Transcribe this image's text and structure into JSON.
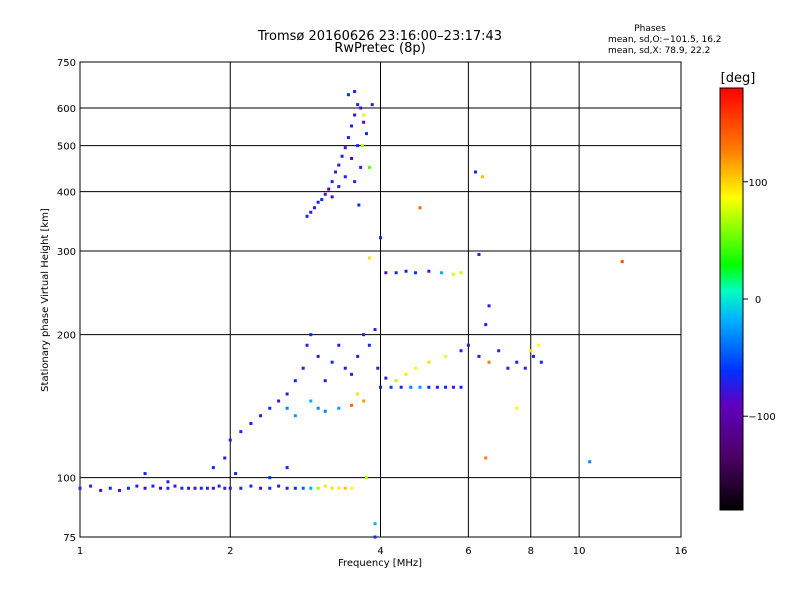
{
  "header": {
    "title": "Tromsø 20160626 23:16:00–23:17:43",
    "subtitle": "RwPretec (8p)",
    "phases_title": "Phases",
    "phases_o": "mean, sd,O:−101.5, 16.2",
    "phases_x": "mean, sd,X:  78.9, 22.2"
  },
  "chart_data": {
    "type": "scatter",
    "xlabel": "Frequency [MHz]",
    "ylabel": "Stationary phase Virtual Height [km]",
    "x_scale": "log",
    "y_scale": "log",
    "xlim": [
      1,
      16
    ],
    "ylim": [
      75,
      750
    ],
    "x_ticks": [
      1,
      2,
      4,
      6,
      8,
      10,
      16
    ],
    "x_tick_labels": [
      "1",
      "2",
      "4",
      "6",
      "8",
      "10",
      "16"
    ],
    "y_ticks": [
      75,
      100,
      200,
      300,
      400,
      500,
      600,
      750
    ],
    "y_tick_labels": [
      "75",
      "100",
      "200",
      "300",
      "400",
      "500",
      "600",
      "750"
    ],
    "grid": true,
    "colorbar": {
      "label": "[deg]",
      "range": [
        -180,
        180
      ],
      "ticks": [
        100,
        0,
        -100
      ],
      "tick_labels": [
        "100",
        "0",
        "−100"
      ]
    },
    "series": [
      {
        "description_key": "F-layer echoes",
        "points": [
          [
            2.85,
            355,
            -100
          ],
          [
            2.9,
            362,
            -110
          ],
          [
            2.95,
            370,
            -105
          ],
          [
            3.0,
            380,
            -100
          ],
          [
            3.05,
            385,
            -95
          ],
          [
            3.1,
            395,
            -110
          ],
          [
            3.15,
            405,
            -120
          ],
          [
            3.2,
            420,
            -100
          ],
          [
            3.25,
            440,
            -105
          ],
          [
            3.3,
            455,
            -110
          ],
          [
            3.35,
            475,
            -100
          ],
          [
            3.4,
            495,
            -115
          ],
          [
            3.45,
            520,
            -100
          ],
          [
            3.5,
            550,
            -105
          ],
          [
            3.55,
            580,
            -110
          ],
          [
            3.6,
            610,
            -100
          ],
          [
            3.45,
            640,
            -95
          ],
          [
            3.55,
            650,
            -105
          ],
          [
            3.65,
            600,
            -115
          ],
          [
            3.7,
            560,
            -120
          ],
          [
            3.4,
            430,
            -100
          ],
          [
            3.5,
            470,
            -130
          ],
          [
            3.6,
            500,
            -105
          ],
          [
            3.3,
            410,
            -100
          ],
          [
            3.2,
            390,
            -125
          ],
          [
            3.65,
            450,
            -100
          ],
          [
            3.55,
            420,
            -105
          ],
          [
            3.85,
            610,
            -110
          ],
          [
            3.75,
            530,
            -100
          ],
          [
            3.62,
            375,
            -100
          ],
          [
            3.68,
            500,
            60
          ],
          [
            3.8,
            450,
            40
          ],
          [
            3.7,
            580,
            80
          ]
        ]
      },
      {
        "description_key": "E and F1-region echoes",
        "points": [
          [
            1.0,
            95,
            -100
          ],
          [
            1.05,
            96,
            -105
          ],
          [
            1.1,
            94,
            -110
          ],
          [
            1.15,
            95,
            -100
          ],
          [
            1.2,
            94,
            -115
          ],
          [
            1.25,
            95,
            -100
          ],
          [
            1.3,
            96,
            -105
          ],
          [
            1.35,
            95,
            -110
          ],
          [
            1.4,
            96,
            -100
          ],
          [
            1.45,
            95,
            -120
          ],
          [
            1.5,
            95,
            -105
          ],
          [
            1.55,
            96,
            -110
          ],
          [
            1.6,
            95,
            -100
          ],
          [
            1.65,
            95,
            -105
          ],
          [
            1.7,
            95,
            -110
          ],
          [
            1.75,
            95,
            -100
          ],
          [
            1.8,
            95,
            -105
          ],
          [
            1.85,
            95,
            -115
          ],
          [
            1.9,
            96,
            -100
          ],
          [
            1.95,
            95,
            -105
          ],
          [
            2.0,
            95,
            -110
          ],
          [
            2.1,
            95,
            -100
          ],
          [
            2.2,
            96,
            -105
          ],
          [
            2.3,
            95,
            -110
          ],
          [
            2.4,
            95,
            -100
          ],
          [
            2.5,
            96,
            -105
          ],
          [
            2.6,
            95,
            -110
          ],
          [
            2.7,
            95,
            -100
          ],
          [
            2.8,
            95,
            -75
          ],
          [
            2.9,
            95,
            -40
          ],
          [
            3.0,
            95,
            60
          ],
          [
            3.1,
            96,
            80
          ],
          [
            3.2,
            95,
            100
          ],
          [
            3.3,
            95,
            95
          ],
          [
            3.4,
            95,
            110
          ],
          [
            3.5,
            95,
            90
          ],
          [
            1.35,
            102,
            -100
          ],
          [
            1.5,
            98,
            -105
          ],
          [
            1.85,
            105,
            -100
          ],
          [
            1.95,
            110,
            -110
          ],
          [
            2.05,
            102,
            -100
          ],
          [
            2.4,
            100,
            -95
          ],
          [
            2.6,
            105,
            -100
          ]
        ]
      },
      {
        "description_key": "Sporadic and oblique echoes",
        "points": [
          [
            2.0,
            120,
            -105
          ],
          [
            2.1,
            125,
            -100
          ],
          [
            2.2,
            130,
            -110
          ],
          [
            2.3,
            135,
            -105
          ],
          [
            2.4,
            140,
            -100
          ],
          [
            2.5,
            145,
            -110
          ],
          [
            2.6,
            150,
            -105
          ],
          [
            2.7,
            160,
            -100
          ],
          [
            2.8,
            170,
            -110
          ],
          [
            2.85,
            190,
            -105
          ],
          [
            2.9,
            200,
            -100
          ],
          [
            3.0,
            180,
            -105
          ],
          [
            3.1,
            160,
            -110
          ],
          [
            3.2,
            175,
            -100
          ],
          [
            3.3,
            190,
            -105
          ],
          [
            3.4,
            170,
            -110
          ],
          [
            3.5,
            165,
            -100
          ],
          [
            3.6,
            180,
            -105
          ],
          [
            3.7,
            200,
            -110
          ],
          [
            3.8,
            190,
            -100
          ],
          [
            3.9,
            205,
            -105
          ],
          [
            3.95,
            170,
            -110
          ],
          [
            2.6,
            140,
            -60
          ],
          [
            2.7,
            135,
            -50
          ],
          [
            2.9,
            145,
            -40
          ],
          [
            3.0,
            140,
            -55
          ],
          [
            3.1,
            138,
            -60
          ],
          [
            3.3,
            140,
            -45
          ],
          [
            3.6,
            150,
            100
          ],
          [
            3.7,
            145,
            120
          ],
          [
            3.5,
            142,
            140
          ],
          [
            4.0,
            155,
            -100
          ],
          [
            4.2,
            155,
            -90
          ],
          [
            4.4,
            155,
            -105
          ],
          [
            4.6,
            155,
            -60
          ],
          [
            4.8,
            155,
            -50
          ],
          [
            5.0,
            155,
            -95
          ],
          [
            5.2,
            155,
            -105
          ],
          [
            5.4,
            155,
            -100
          ],
          [
            5.6,
            155,
            -110
          ],
          [
            5.8,
            155,
            -100
          ],
          [
            4.1,
            162,
            -105
          ],
          [
            4.3,
            160,
            70
          ],
          [
            4.5,
            165,
            80
          ],
          [
            4.7,
            170,
            90
          ],
          [
            5.0,
            175,
            100
          ],
          [
            5.4,
            180,
            85
          ],
          [
            5.8,
            185,
            -100
          ],
          [
            6.0,
            190,
            -105
          ],
          [
            6.3,
            180,
            -110
          ],
          [
            6.6,
            175,
            130
          ],
          [
            6.9,
            185,
            -100
          ],
          [
            7.2,
            170,
            -105
          ],
          [
            7.5,
            175,
            -100
          ],
          [
            7.8,
            170,
            -110
          ],
          [
            8.1,
            180,
            -105
          ],
          [
            8.4,
            175,
            -100
          ],
          [
            8.0,
            185,
            100
          ],
          [
            8.3,
            190,
            90
          ],
          [
            4.0,
            320,
            -100
          ],
          [
            4.1,
            270,
            -110
          ],
          [
            4.3,
            270,
            -100
          ],
          [
            4.5,
            272,
            -105
          ],
          [
            4.7,
            270,
            -95
          ],
          [
            5.0,
            272,
            -100
          ],
          [
            5.3,
            270,
            -40
          ],
          [
            5.6,
            268,
            80
          ],
          [
            5.8,
            270,
            70
          ],
          [
            3.8,
            290,
            100
          ],
          [
            6.3,
            295,
            -100
          ],
          [
            6.6,
            230,
            -105
          ],
          [
            6.5,
            210,
            -100
          ],
          [
            6.2,
            440,
            -100
          ],
          [
            6.4,
            430,
            110
          ],
          [
            4.8,
            370,
            140
          ],
          [
            6.5,
            110,
            130
          ],
          [
            7.5,
            140,
            90
          ],
          [
            10.5,
            108,
            -60
          ],
          [
            12.2,
            285,
            150
          ],
          [
            3.9,
            80,
            -40
          ],
          [
            3.9,
            75,
            -100
          ],
          [
            3.75,
            100,
            60
          ]
        ]
      }
    ]
  }
}
